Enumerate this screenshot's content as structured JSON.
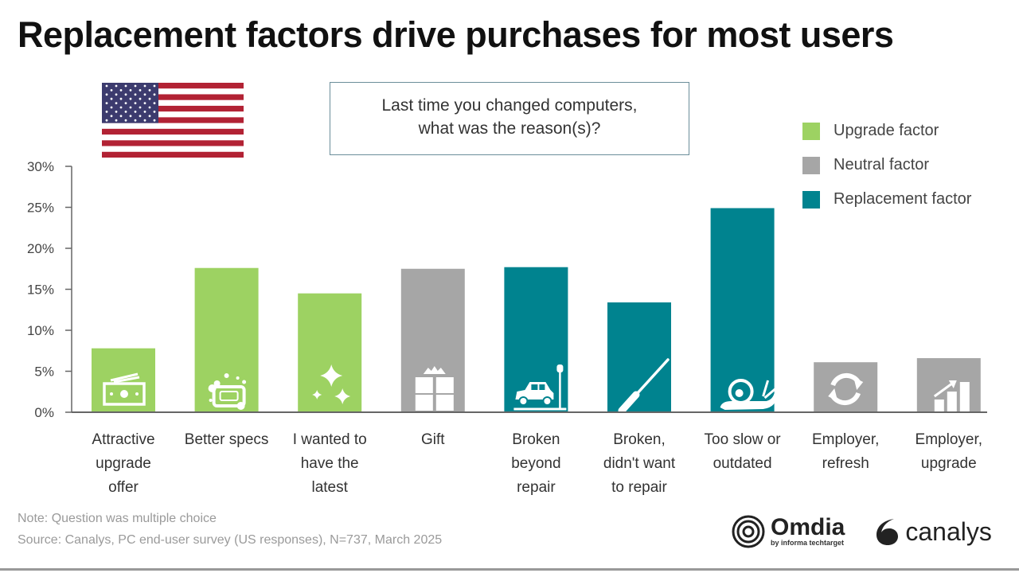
{
  "chart_data": {
    "type": "bar",
    "title": "Replacement factors drive purchases for most users",
    "question": [
      "Last time you changed computers,",
      "what was the reason(s)?"
    ],
    "xlabel": "",
    "ylabel": "",
    "ylim": [
      0,
      30
    ],
    "yticks": [
      "0%",
      "5%",
      "10%",
      "15%",
      "20%",
      "25%",
      "30%"
    ],
    "ytick_values": [
      0,
      5,
      10,
      15,
      20,
      25,
      30
    ],
    "grid": false,
    "legend_position": "top-right",
    "legend": [
      {
        "name": "Upgrade factor",
        "color": "#9dd262"
      },
      {
        "name": "Neutral factor",
        "color": "#a6a6a6"
      },
      {
        "name": "Replacement factor",
        "color": "#00838f"
      }
    ],
    "categories": [
      [
        "Attractive",
        "upgrade",
        "offer"
      ],
      [
        "Better specs"
      ],
      [
        "I wanted to",
        "have the",
        "latest"
      ],
      [
        "Gift"
      ],
      [
        "Broken",
        "beyond",
        "repair"
      ],
      [
        "Broken,",
        "didn't want",
        "to repair"
      ],
      [
        "Too slow or",
        "outdated"
      ],
      [
        "Employer,",
        "refresh"
      ],
      [
        "Employer,",
        "upgrade"
      ]
    ],
    "values": [
      7.8,
      17.6,
      14.5,
      17.5,
      17.7,
      13.4,
      24.9,
      6.1,
      6.6
    ],
    "factor_type": [
      "Upgrade factor",
      "Upgrade factor",
      "Upgrade factor",
      "Neutral factor",
      "Replacement factor",
      "Replacement factor",
      "Replacement factor",
      "Neutral factor",
      "Neutral factor"
    ],
    "bar_icons": [
      "money-icon",
      "soap-icon",
      "sparkle-icon",
      "gift-icon",
      "crashed-car-icon",
      "screwdriver-icon",
      "snail-icon",
      "refresh-icon",
      "growth-chart-icon"
    ]
  },
  "flag": "us-flag-icon",
  "footer": {
    "note": "Note: Question was multiple choice",
    "source": "Source: Canalys, PC end-user survey (US responses), N=737, March 2025"
  },
  "logos": {
    "omdia": "Omdia",
    "omdia_sub": "by informa techtarget",
    "canalys": "canalys"
  }
}
